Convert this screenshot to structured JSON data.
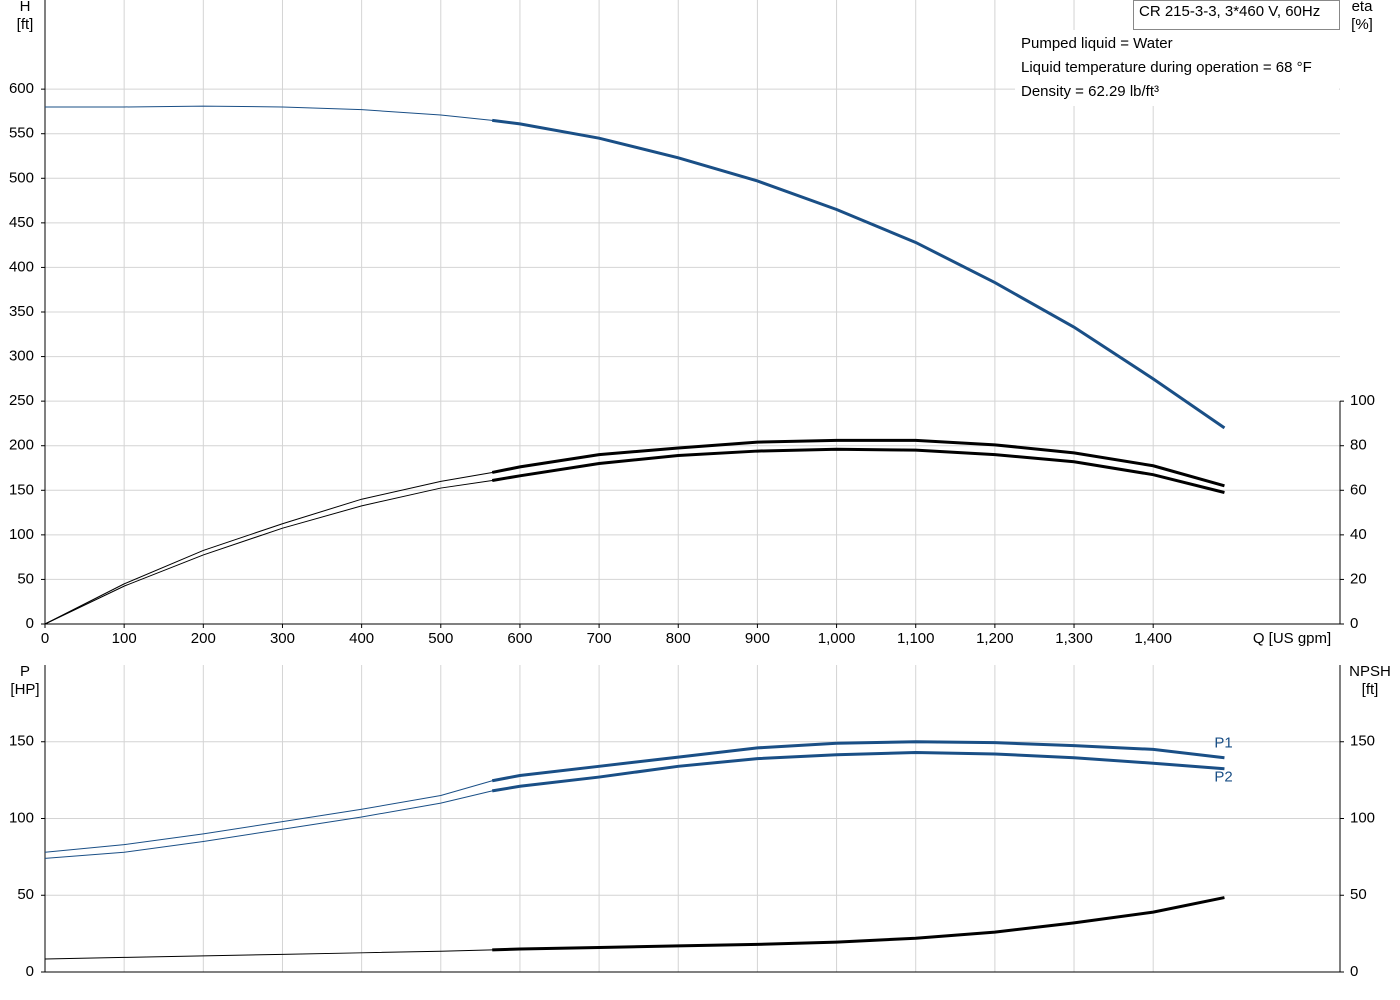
{
  "chart_data": [
    {
      "type": "line",
      "y_label": "H",
      "y_unit": "[ft]",
      "y2_label": "eta",
      "y2_unit": "[%]",
      "x_label": "Q [US gpm]",
      "model": "CR 215-3-3, 3*460 V, 60Hz",
      "notes": [
        "Pumped liquid = Water",
        "Liquid temperature during operation = 68 °F",
        "Density = 62.29 lb/ft³"
      ],
      "xlim": [
        0,
        1636
      ],
      "xticks": [
        0,
        100,
        200,
        300,
        400,
        500,
        600,
        700,
        800,
        900,
        {
          "value": 1000,
          "label": "1,000"
        },
        {
          "value": 1100,
          "label": "1,100"
        },
        {
          "value": 1200,
          "label": "1,200"
        },
        {
          "value": 1300,
          "label": "1,300"
        },
        {
          "value": 1400,
          "label": "1,400"
        }
      ],
      "ylim": [
        0,
        700
      ],
      "yticks": [
        0,
        50,
        100,
        150,
        200,
        250,
        300,
        350,
        400,
        450,
        500,
        550,
        600
      ],
      "y2lim": [
        0,
        280
      ],
      "y2ticks": [
        0,
        20,
        40,
        60,
        80,
        100
      ],
      "grid": true,
      "duty_range": [
        565,
        1490
      ],
      "x": [
        0,
        100,
        200,
        300,
        400,
        500,
        565,
        600,
        700,
        800,
        900,
        1000,
        1100,
        1200,
        1300,
        1400,
        1490
      ],
      "series": [
        {
          "color": "#1a4f86",
          "values": [
            580,
            580,
            581,
            580,
            577,
            571,
            565,
            561,
            545,
            523,
            497,
            465,
            428,
            383,
            333,
            275,
            220
          ]
        },
        {
          "color": "#000000",
          "axis": "y2",
          "values": [
            0,
            18,
            33,
            45,
            56,
            64,
            68,
            70.5,
            76,
            79,
            81.6,
            82.4,
            82.4,
            80.4,
            76.8,
            71,
            62
          ]
        },
        {
          "color": "#000000",
          "axis": "y2",
          "values": [
            0,
            17,
            31,
            43,
            53,
            61,
            64.4,
            66.5,
            72,
            75.6,
            77.6,
            78.4,
            78,
            76,
            72.8,
            67,
            59
          ]
        }
      ]
    },
    {
      "type": "line",
      "y_label": "P",
      "y_unit": "[HP]",
      "y2_label": "NPSH",
      "y2_unit": "[ft]",
      "xlim": [
        0,
        1636
      ],
      "xgrid": [
        0,
        100,
        200,
        300,
        400,
        500,
        600,
        700,
        800,
        900,
        1000,
        1100,
        1200,
        1300,
        1400
      ],
      "ylim": [
        0,
        200
      ],
      "yticks": [
        0,
        50,
        100,
        150
      ],
      "y2lim": [
        0,
        200
      ],
      "y2ticks": [
        0,
        50,
        100,
        150
      ],
      "grid": true,
      "duty_range": [
        565,
        1490
      ],
      "x": [
        0,
        100,
        200,
        300,
        400,
        500,
        565,
        600,
        700,
        800,
        900,
        1000,
        1100,
        1200,
        1300,
        1400,
        1490
      ],
      "series": [
        {
          "name": "P1",
          "color": "#1a4f86",
          "values": [
            78,
            83,
            90,
            98,
            106,
            115,
            124.6,
            128,
            134,
            140,
            146,
            149,
            150,
            149.4,
            147.5,
            145,
            139.6
          ]
        },
        {
          "name": "P2",
          "color": "#1a4f86",
          "values": [
            74,
            78,
            85,
            93,
            101,
            110,
            118,
            121,
            127,
            134,
            139,
            141.5,
            143,
            142,
            139.6,
            136,
            132.4
          ]
        },
        {
          "color": "#000000",
          "axis": "y2",
          "values": [
            8.5,
            9.5,
            10.5,
            11.5,
            12.5,
            13.5,
            14.4,
            15,
            16,
            17,
            18,
            19.5,
            22,
            26,
            32,
            39,
            48.5
          ]
        }
      ]
    }
  ]
}
